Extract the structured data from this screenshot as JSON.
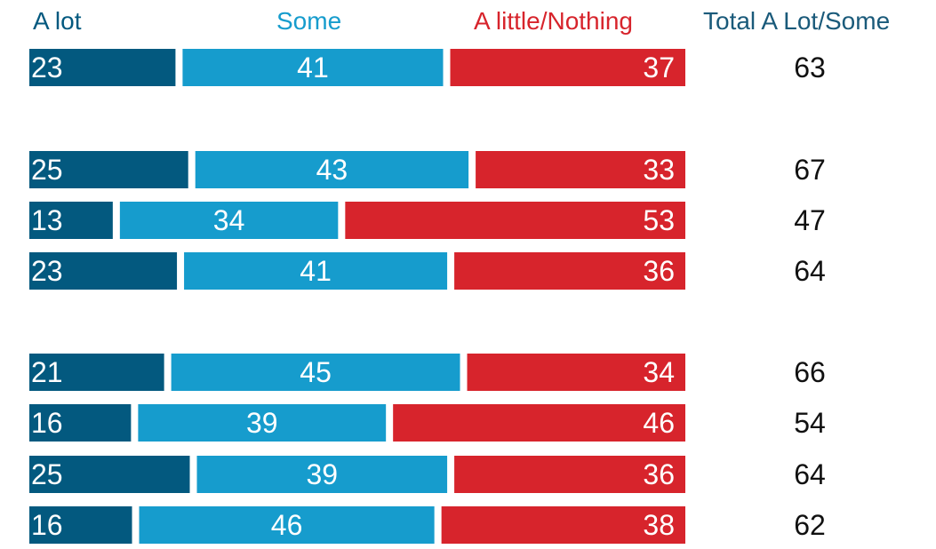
{
  "colors": {
    "a_lot": "#03597f",
    "some": "#169ccd",
    "a_little_nothing": "#d7242c",
    "total_header": "#1a5a7a",
    "total_values": "#111111",
    "bar_text": "#ffffff"
  },
  "headers": {
    "a_lot": "A lot",
    "some": "Some",
    "a_little_nothing": "A little/Nothing",
    "total": "Total A Lot/Some"
  },
  "chart_data": {
    "type": "bar",
    "orientation": "horizontal",
    "stacked": true,
    "groups": [
      [
        0
      ],
      [
        1,
        2,
        3
      ],
      [
        4,
        5,
        6,
        7
      ]
    ],
    "series": [
      {
        "name": "A lot",
        "values": [
          23,
          25,
          13,
          23,
          21,
          16,
          25,
          16
        ]
      },
      {
        "name": "Some",
        "values": [
          41,
          43,
          34,
          41,
          45,
          39,
          39,
          46
        ]
      },
      {
        "name": "A little/Nothing",
        "values": [
          37,
          33,
          53,
          36,
          34,
          46,
          36,
          38
        ]
      }
    ],
    "totals": {
      "name": "Total A Lot/Some",
      "values": [
        63,
        67,
        47,
        64,
        66,
        54,
        64,
        62
      ]
    },
    "xlim": [
      0,
      101
    ],
    "grid": false,
    "legend": "top"
  }
}
